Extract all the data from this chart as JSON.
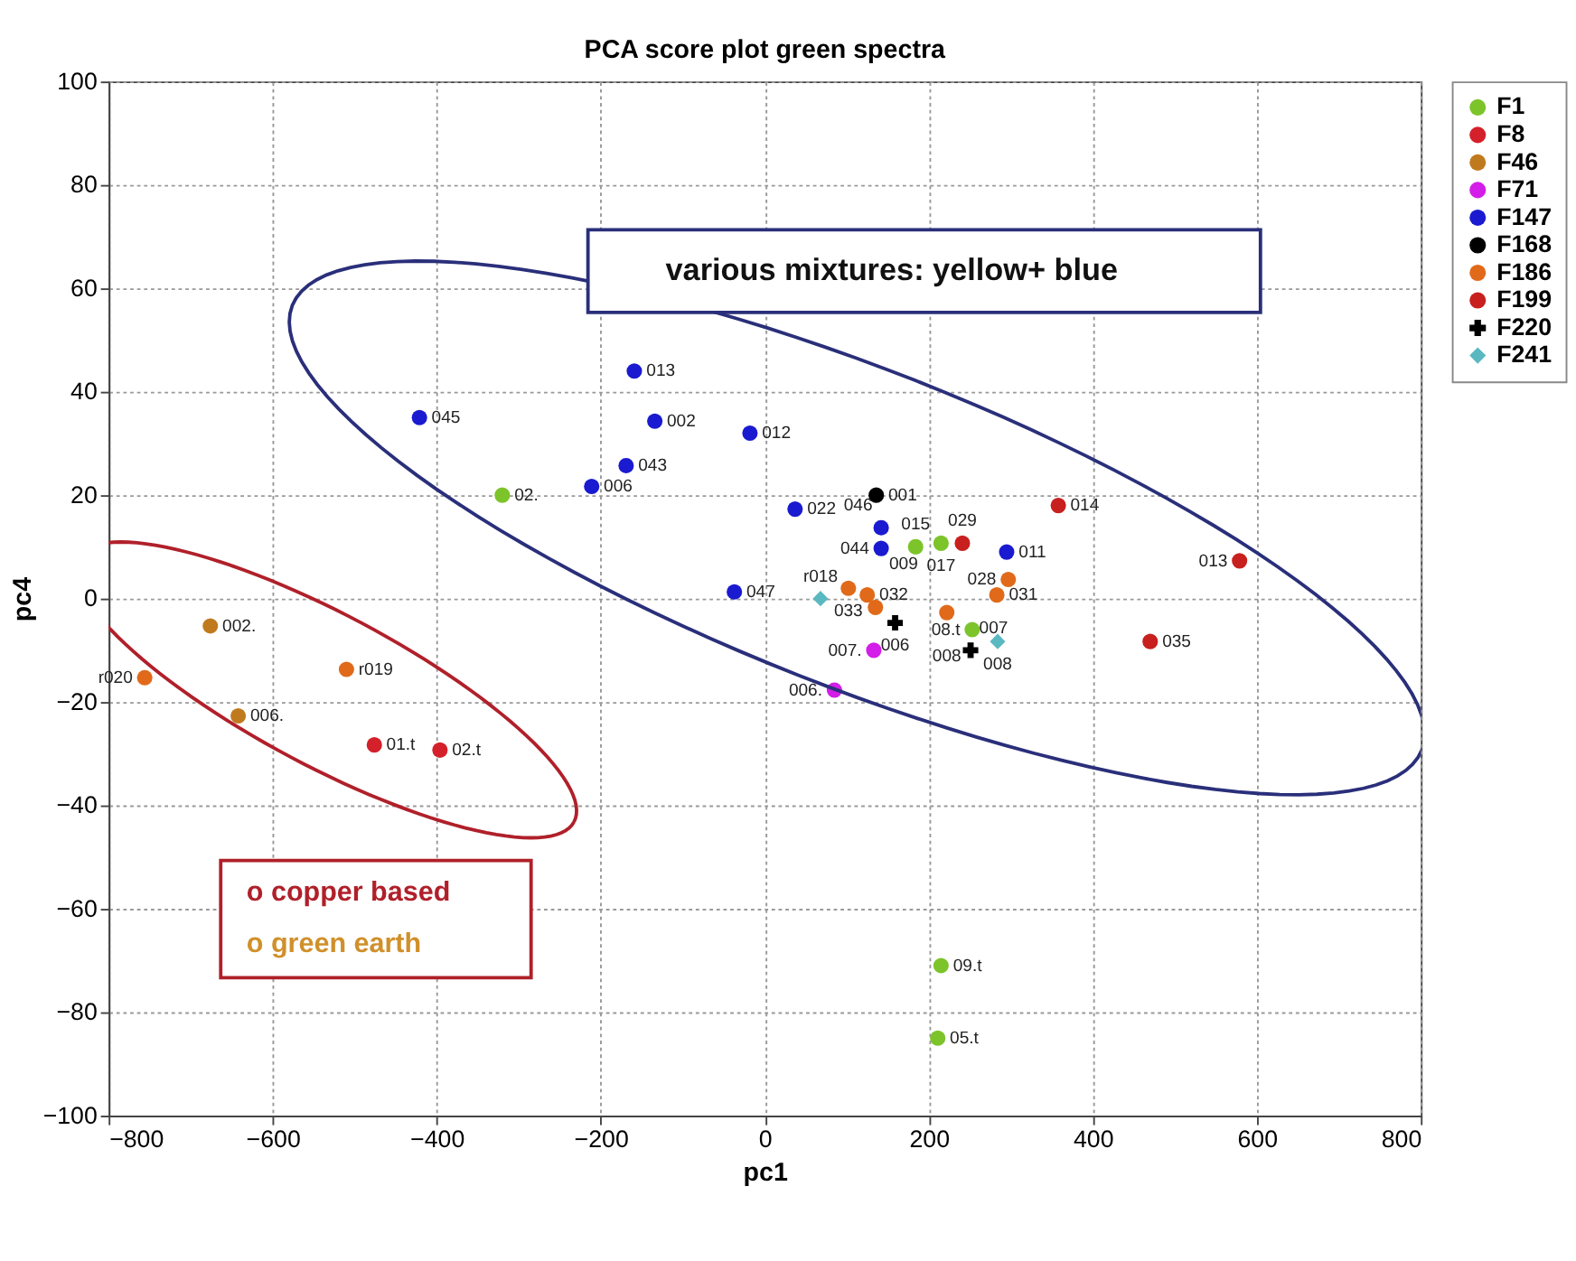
{
  "chart_data": {
    "type": "scatter",
    "title": "PCA score plot green spectra",
    "xlabel": "pc1",
    "ylabel": "pc4",
    "xlim": [
      -800,
      800
    ],
    "xticks": [
      -800,
      -600,
      -400,
      -200,
      0,
      200,
      400,
      600,
      800
    ],
    "ylim": [
      -100,
      100
    ],
    "yticks": [
      -100,
      -80,
      -60,
      -40,
      -20,
      0,
      20,
      40,
      60,
      80,
      100
    ],
    "grid": true,
    "legend": "top right",
    "annotations": [
      "various mixtures: yellow+ blue",
      "o copper based",
      "o green earth",
      {
        "text": "02.",
        "x": -320,
        "y": 20
      },
      {
        "text": "015",
        "x": 184,
        "y": 10
      },
      {
        "text": "017",
        "x": 215,
        "y": 10.7
      },
      {
        "text": "08.t",
        "x": 253,
        "y": -6
      },
      {
        "text": "09.t",
        "x": 215,
        "y": -71
      },
      {
        "text": "05.t",
        "x": 211,
        "y": -85
      },
      {
        "text": "01.t",
        "x": -476,
        "y": -28.3
      },
      {
        "text": "02.t",
        "x": -396,
        "y": -29.3
      },
      {
        "text": "002.",
        "x": -676,
        "y": -5.3
      },
      {
        "text": "006.",
        "x": -642,
        "y": -22.7
      },
      {
        "text": "007.",
        "x": 133,
        "y": -10
      },
      {
        "text": "006.",
        "x": 85,
        "y": -17.7
      },
      {
        "text": "045",
        "x": -421,
        "y": 35
      },
      {
        "text": "013",
        "x": -159,
        "y": 44
      },
      {
        "text": "002",
        "x": -134,
        "y": 34.3
      },
      {
        "text": "012",
        "x": -18,
        "y": 32
      },
      {
        "text": "043",
        "x": -169,
        "y": 25.7
      },
      {
        "text": "006",
        "x": -211,
        "y": 21.7
      },
      {
        "text": "022",
        "x": 37,
        "y": 17.3
      },
      {
        "text": "046",
        "x": 142,
        "y": 13.7
      },
      {
        "text": "044",
        "x": 142,
        "y": 9.7
      },
      {
        "text": "011",
        "x": 295,
        "y": 9
      },
      {
        "text": "047",
        "x": -37,
        "y": 1.3
      },
      {
        "text": "001",
        "x": 136,
        "y": 20
      },
      {
        "text": "r020",
        "x": -756,
        "y": -15.3
      },
      {
        "text": "r019",
        "x": -510,
        "y": -13.7
      },
      {
        "text": "033",
        "x": 102,
        "y": 2
      },
      {
        "text": "032",
        "x": 125,
        "y": 0.7
      },
      {
        "text": "009",
        "x": 135,
        "y": -1.7
      },
      {
        "text": "008",
        "x": 222,
        "y": -2.7
      },
      {
        "text": "031",
        "x": 283,
        "y": 0.7
      },
      {
        "text": "028",
        "x": 297,
        "y": 3.7
      },
      {
        "text": "029",
        "x": 241,
        "y": 10.7
      },
      {
        "text": "014",
        "x": 358,
        "y": 18
      },
      {
        "text": "013",
        "x": 579,
        "y": 7.3
      },
      {
        "text": "035",
        "x": 470,
        "y": -8.3
      },
      {
        "text": "006",
        "x": 159,
        "y": -4.7
      },
      {
        "text": "007",
        "x": 251,
        "y": -10
      },
      {
        "text": "r018",
        "x": 68,
        "y": 0
      },
      {
        "text": "008",
        "x": 284,
        "y": -8.3
      }
    ],
    "series": [
      {
        "name": "F1",
        "color": "#7cc42a",
        "marker": "circle",
        "x": [
          -320,
          184,
          215,
          253,
          215,
          211
        ],
        "values": [
          20,
          10,
          10.7,
          -6,
          -71,
          -85
        ]
      },
      {
        "name": "F8",
        "color": "#d4202a",
        "marker": "circle",
        "x": [
          -476,
          -396
        ],
        "values": [
          -28.3,
          -29.3
        ]
      },
      {
        "name": "F46",
        "color": "#c07a1e",
        "marker": "circle",
        "x": [
          -676,
          -642
        ],
        "values": [
          -5.3,
          -22.7
        ]
      },
      {
        "name": "F71",
        "color": "#d21ee8",
        "marker": "circle",
        "x": [
          133,
          85
        ],
        "values": [
          -10,
          -17.7
        ]
      },
      {
        "name": "F147",
        "color": "#1a1ad0",
        "marker": "circle",
        "x": [
          -421,
          -159,
          -134,
          -18,
          -169,
          -211,
          37,
          142,
          142,
          295,
          -37
        ],
        "values": [
          35,
          44,
          34.3,
          32,
          25.7,
          21.7,
          17.3,
          13.7,
          9.7,
          9,
          1.3
        ]
      },
      {
        "name": "F168",
        "color": "#000000",
        "marker": "circle",
        "x": [
          136
        ],
        "values": [
          20
        ]
      },
      {
        "name": "F186",
        "color": "#e06a1a",
        "marker": "circle",
        "x": [
          -756,
          -510,
          102,
          125,
          135,
          222,
          283,
          297
        ],
        "values": [
          -15.3,
          -13.7,
          2,
          0.7,
          -1.7,
          -2.7,
          0.7,
          3.7
        ]
      },
      {
        "name": "F199",
        "color": "#c8201e",
        "marker": "circle",
        "x": [
          241,
          358,
          579,
          470
        ],
        "values": [
          10.7,
          18,
          7.3,
          -8.3
        ]
      },
      {
        "name": "F220",
        "color": "#000000",
        "marker": "cross",
        "x": [
          159,
          251
        ],
        "values": [
          -4.7,
          -10
        ]
      },
      {
        "name": "F241",
        "color": "#5ab8c0",
        "marker": "diamond",
        "x": [
          68,
          284
        ],
        "values": [
          0,
          -8.3
        ]
      }
    ]
  }
}
